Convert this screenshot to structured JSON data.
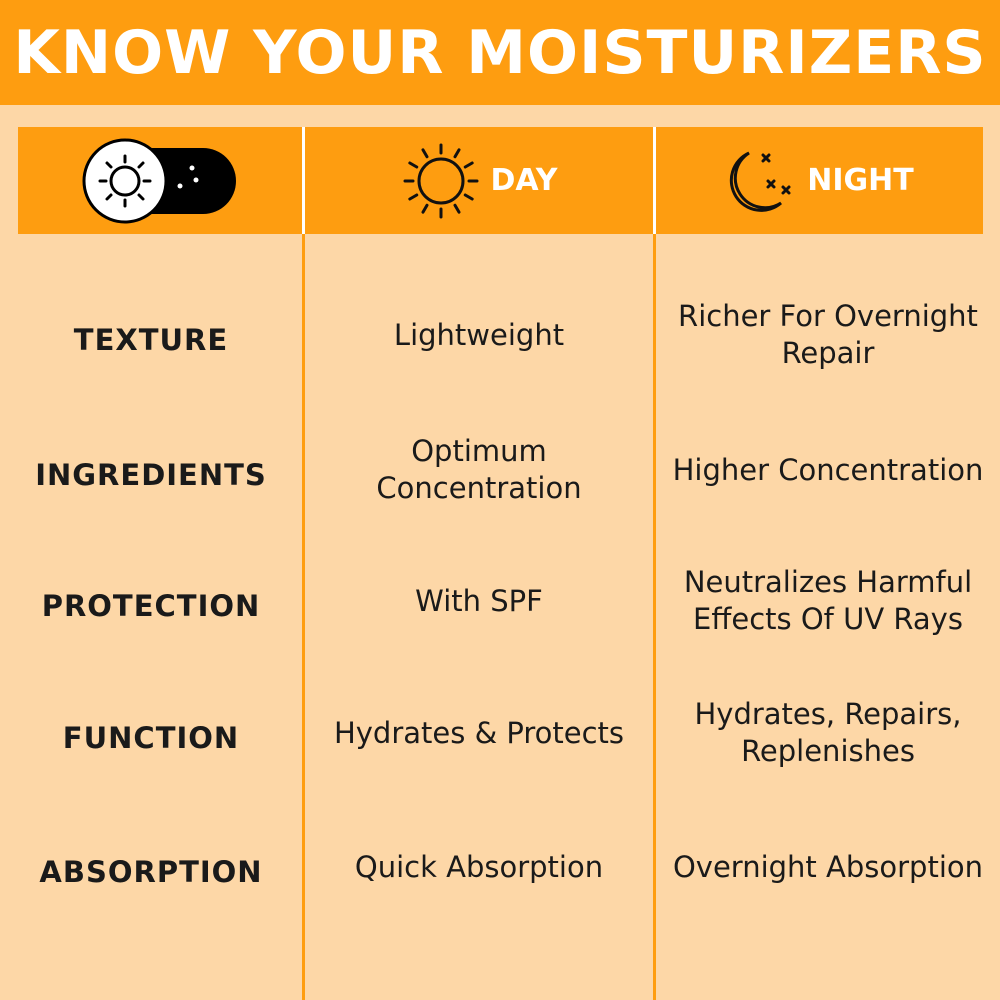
{
  "title": "KNOW YOUR MOISTURIZERS",
  "colors": {
    "accent": "#fe9d10",
    "background": "#fdd7a7",
    "text": "#1a1a1a"
  },
  "header": {
    "toggle_icon": "day-night-toggle-icon",
    "day": {
      "label": "DAY",
      "icon": "sun-icon"
    },
    "night": {
      "label": "NIGHT",
      "icon": "moon-stars-icon"
    }
  },
  "rows": [
    {
      "label": "TEXTURE",
      "day": "Lightweight",
      "night": "Richer For Overnight Repair"
    },
    {
      "label": "INGREDIENTS",
      "day": "Optimum Concentration",
      "night": "Higher Concentration"
    },
    {
      "label": "PROTECTION",
      "day": "With SPF",
      "night": "Neutralizes Harmful Effects Of UV Rays"
    },
    {
      "label": "FUNCTION",
      "day": "Hydrates & Protects",
      "night": "Hydrates, Repairs, Replenishes"
    },
    {
      "label": "ABSORPTION",
      "day": "Quick Absorption",
      "night": "Overnight Absorption"
    }
  ]
}
